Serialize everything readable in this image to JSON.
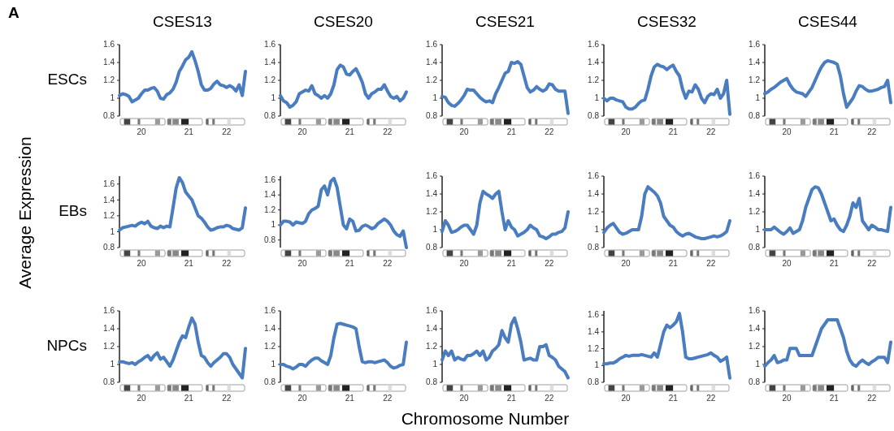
{
  "chart_data": [
    {
      "type": "line",
      "title": "CSES13",
      "ylabel": "ESCs",
      "categories": [
        null,
        null,
        null,
        null,
        null,
        null,
        null,
        "20",
        null,
        null,
        null,
        null,
        null,
        null,
        null,
        null,
        null,
        null,
        null,
        null,
        null,
        null,
        "21",
        null,
        null,
        null,
        null,
        null,
        null,
        null,
        null,
        null,
        null,
        null,
        "22",
        null,
        null,
        null,
        null,
        null,
        null
      ],
      "ylim": [
        0.8,
        1.6
      ],
      "yticks": [
        0.8,
        1,
        1.2,
        1.4,
        1.6
      ],
      "series": [
        {
          "color": "#4a7dbf",
          "values": [
            1.03,
            1.05,
            1.04,
            1.02,
            0.96,
            0.98,
            1.0,
            1.05,
            1.09,
            1.09,
            1.11,
            1.12,
            1.08,
            1.0,
            0.99,
            1.04,
            1.06,
            1.1,
            1.18,
            1.3,
            1.36,
            1.43,
            1.46,
            1.52,
            1.42,
            1.3,
            1.15,
            1.09,
            1.09,
            1.11,
            1.16,
            1.19,
            1.15,
            1.14,
            1.12,
            1.14,
            1.12,
            1.08,
            1.15,
            1.03,
            1.3
          ]
        }
      ]
    },
    {
      "type": "line",
      "title": "CSES20",
      "categories": [
        null,
        null,
        null,
        null,
        null,
        null,
        null,
        "20",
        null,
        null,
        null,
        null,
        null,
        null,
        null,
        null,
        null,
        null,
        null,
        null,
        null,
        null,
        "21",
        null,
        null,
        null,
        null,
        null,
        null,
        null,
        null,
        null,
        null,
        null,
        "22",
        null,
        null,
        null,
        null,
        null,
        null
      ],
      "ylim": [
        0.8,
        1.6
      ],
      "yticks": [
        0.8,
        1,
        1.2,
        1.4,
        1.6
      ],
      "series": [
        {
          "color": "#4a7dbf",
          "values": [
            1.03,
            0.97,
            0.95,
            0.9,
            0.92,
            0.96,
            1.05,
            1.07,
            1.09,
            1.08,
            1.14,
            1.05,
            1.03,
            1.0,
            1.03,
            1.0,
            1.05,
            1.15,
            1.32,
            1.37,
            1.35,
            1.27,
            1.26,
            1.3,
            1.33,
            1.26,
            1.18,
            1.05,
            1.0,
            1.05,
            1.07,
            1.1,
            1.1,
            1.15,
            1.08,
            1.02,
            1.0,
            1.02,
            0.97,
            1.0,
            1.07
          ]
        }
      ]
    },
    {
      "type": "line",
      "title": "CSES21",
      "categories": [
        null,
        null,
        null,
        null,
        null,
        null,
        null,
        "20",
        null,
        null,
        null,
        null,
        null,
        null,
        null,
        null,
        null,
        null,
        null,
        null,
        null,
        null,
        "21",
        null,
        null,
        null,
        null,
        null,
        null,
        null,
        null,
        null,
        null,
        null,
        "22",
        null,
        null,
        null,
        null,
        null,
        null
      ],
      "ylim": [
        0.8,
        1.6
      ],
      "yticks": [
        0.8,
        1,
        1.2,
        1.4,
        1.6
      ],
      "series": [
        {
          "color": "#4a7dbf",
          "values": [
            1.02,
            1.01,
            0.95,
            0.92,
            0.91,
            0.94,
            0.98,
            1.03,
            1.1,
            1.09,
            1.09,
            1.05,
            1.01,
            0.98,
            0.96,
            0.97,
            0.95,
            1.05,
            1.12,
            1.2,
            1.28,
            1.3,
            1.4,
            1.39,
            1.41,
            1.38,
            1.25,
            1.12,
            1.07,
            1.09,
            1.13,
            1.1,
            1.08,
            1.1,
            1.16,
            1.15,
            1.1,
            1.08,
            1.08,
            1.08,
            0.83
          ]
        }
      ]
    },
    {
      "type": "line",
      "title": "CSES32",
      "categories": [
        null,
        null,
        null,
        null,
        null,
        null,
        null,
        "20",
        null,
        null,
        null,
        null,
        null,
        null,
        null,
        null,
        null,
        null,
        null,
        null,
        null,
        null,
        "21",
        null,
        null,
        null,
        null,
        null,
        null,
        null,
        null,
        null,
        null,
        null,
        "22",
        null,
        null,
        null,
        null,
        null,
        null
      ],
      "ylim": [
        0.8,
        1.6
      ],
      "yticks": [
        0.8,
        1,
        1.2,
        1.4,
        1.6
      ],
      "series": [
        {
          "color": "#4a7dbf",
          "values": [
            1.0,
            0.97,
            1.0,
            1.0,
            0.98,
            0.97,
            0.96,
            0.9,
            0.88,
            0.88,
            0.9,
            0.94,
            0.97,
            0.98,
            1.1,
            1.25,
            1.35,
            1.38,
            1.36,
            1.35,
            1.32,
            1.35,
            1.37,
            1.3,
            1.25,
            1.1,
            1.0,
            1.08,
            1.07,
            1.15,
            1.1,
            1.0,
            0.95,
            1.02,
            1.05,
            1.04,
            1.1,
            1.0,
            1.05,
            1.2,
            0.82
          ]
        }
      ]
    },
    {
      "type": "line",
      "title": "CSES44",
      "categories": [
        null,
        null,
        null,
        null,
        null,
        null,
        null,
        "20",
        null,
        null,
        null,
        null,
        null,
        null,
        null,
        null,
        null,
        null,
        null,
        null,
        null,
        null,
        "21",
        null,
        null,
        null,
        null,
        null,
        null,
        null,
        null,
        null,
        null,
        null,
        "22",
        null,
        null,
        null,
        null,
        null,
        null
      ],
      "ylim": [
        0.8,
        1.6
      ],
      "yticks": [
        0.8,
        1,
        1.2,
        1.4,
        1.6
      ],
      "series": [
        {
          "color": "#4a7dbf",
          "values": [
            1.05,
            1.07,
            1.1,
            1.12,
            1.15,
            1.18,
            1.2,
            1.22,
            1.15,
            1.1,
            1.07,
            1.06,
            1.05,
            1.02,
            1.07,
            1.12,
            1.2,
            1.28,
            1.35,
            1.4,
            1.42,
            1.41,
            1.4,
            1.38,
            1.25,
            1.05,
            0.9,
            0.95,
            1.0,
            1.08,
            1.14,
            1.13,
            1.1,
            1.08,
            1.08,
            1.09,
            1.1,
            1.12,
            1.13,
            1.2,
            0.95
          ]
        }
      ]
    },
    {
      "type": "line",
      "ylabel": "EBs",
      "categories": [
        null,
        null,
        null,
        null,
        null,
        null,
        null,
        "20",
        null,
        null,
        null,
        null,
        null,
        null,
        null,
        null,
        null,
        null,
        null,
        null,
        null,
        null,
        "21",
        null,
        null,
        null,
        null,
        null,
        null,
        null,
        null,
        null,
        null,
        null,
        "22",
        null,
        null,
        null,
        null,
        null,
        null
      ],
      "ylim": [
        0.8,
        1.7
      ],
      "yticks": [
        0.8,
        1,
        1.2,
        1.4,
        1.6
      ],
      "series": [
        {
          "color": "#4a7dbf",
          "values": [
            1.02,
            1.05,
            1.06,
            1.07,
            1.08,
            1.07,
            1.1,
            1.12,
            1.1,
            1.13,
            1.07,
            1.05,
            1.04,
            1.07,
            1.05,
            1.07,
            1.06,
            1.3,
            1.55,
            1.68,
            1.62,
            1.5,
            1.45,
            1.4,
            1.3,
            1.2,
            1.17,
            1.12,
            1.06,
            1.02,
            1.03,
            1.05,
            1.06,
            1.06,
            1.08,
            1.07,
            1.04,
            1.03,
            1.02,
            1.05,
            1.3
          ]
        }
      ]
    },
    {
      "type": "line",
      "categories": [
        null,
        null,
        null,
        null,
        null,
        null,
        null,
        "20",
        null,
        null,
        null,
        null,
        null,
        null,
        null,
        null,
        null,
        null,
        null,
        null,
        null,
        null,
        "21",
        null,
        null,
        null,
        null,
        null,
        null,
        null,
        null,
        null,
        null,
        null,
        "22",
        null,
        null,
        null,
        null,
        null,
        null
      ],
      "ylim": [
        0.7,
        1.65
      ],
      "yticks": [
        0.8,
        1,
        1.2,
        1.4,
        1.6
      ],
      "series": [
        {
          "color": "#4a7dbf",
          "values": [
            1.0,
            1.05,
            1.05,
            1.04,
            1.0,
            1.04,
            1.03,
            1.02,
            1.05,
            1.15,
            1.2,
            1.22,
            1.25,
            1.47,
            1.52,
            1.4,
            1.58,
            1.62,
            1.5,
            1.25,
            1.0,
            0.95,
            1.08,
            1.05,
            0.92,
            0.93,
            0.98,
            1.0,
            0.98,
            0.95,
            0.97,
            1.02,
            1.05,
            1.08,
            1.05,
            1.0,
            0.92,
            0.87,
            0.85,
            0.92,
            0.7
          ]
        }
      ]
    },
    {
      "type": "line",
      "categories": [
        null,
        null,
        null,
        null,
        null,
        null,
        null,
        "20",
        null,
        null,
        null,
        null,
        null,
        null,
        null,
        null,
        null,
        null,
        null,
        null,
        null,
        null,
        "21",
        null,
        null,
        null,
        null,
        null,
        null,
        null,
        null,
        null,
        null,
        null,
        "22",
        null,
        null,
        null,
        null,
        null,
        null
      ],
      "ylim": [
        0.8,
        1.6
      ],
      "yticks": [
        0.8,
        1,
        1.2,
        1.4,
        1.6
      ],
      "series": [
        {
          "color": "#4a7dbf",
          "values": [
            0.98,
            1.1,
            1.05,
            0.97,
            0.98,
            1.0,
            1.03,
            1.05,
            1.05,
            1.0,
            0.95,
            1.05,
            1.3,
            1.43,
            1.4,
            1.38,
            1.35,
            1.4,
            1.43,
            1.2,
            1.0,
            1.1,
            1.03,
            1.0,
            0.93,
            0.95,
            0.97,
            1.0,
            1.05,
            1.02,
            1.0,
            0.93,
            0.92,
            0.9,
            0.92,
            0.95,
            0.95,
            0.97,
            0.98,
            1.02,
            1.2
          ]
        }
      ]
    },
    {
      "type": "line",
      "categories": [
        null,
        null,
        null,
        null,
        null,
        null,
        null,
        "20",
        null,
        null,
        null,
        null,
        null,
        null,
        null,
        null,
        null,
        null,
        null,
        null,
        null,
        null,
        "21",
        null,
        null,
        null,
        null,
        null,
        null,
        null,
        null,
        null,
        null,
        null,
        "22",
        null,
        null,
        null,
        null,
        null,
        null
      ],
      "ylim": [
        0.8,
        1.6
      ],
      "yticks": [
        0.8,
        1,
        1.2,
        1.4,
        1.6
      ],
      "series": [
        {
          "color": "#4a7dbf",
          "values": [
            0.97,
            1.02,
            1.05,
            1.07,
            1.02,
            0.97,
            0.95,
            0.96,
            0.98,
            1.0,
            1.0,
            1.0,
            1.15,
            1.4,
            1.48,
            1.45,
            1.42,
            1.38,
            1.3,
            1.15,
            1.1,
            1.05,
            1.03,
            0.98,
            0.95,
            0.93,
            0.95,
            0.96,
            0.94,
            0.92,
            0.91,
            0.9,
            0.9,
            0.91,
            0.92,
            0.93,
            0.92,
            0.93,
            0.95,
            0.98,
            1.1
          ]
        }
      ]
    },
    {
      "type": "line",
      "categories": [
        null,
        null,
        null,
        null,
        null,
        null,
        null,
        "20",
        null,
        null,
        null,
        null,
        null,
        null,
        null,
        null,
        null,
        null,
        null,
        null,
        null,
        null,
        "21",
        null,
        null,
        null,
        null,
        null,
        null,
        null,
        null,
        null,
        null,
        null,
        "22",
        null,
        null,
        null,
        null,
        null,
        null
      ],
      "ylim": [
        0.8,
        1.6
      ],
      "yticks": [
        0.8,
        1,
        1.2,
        1.4,
        1.6
      ],
      "series": [
        {
          "color": "#4a7dbf",
          "values": [
            1.0,
            1.0,
            1.0,
            1.03,
            1.0,
            0.97,
            0.95,
            0.98,
            1.02,
            0.96,
            0.98,
            1.0,
            1.1,
            1.25,
            1.35,
            1.45,
            1.48,
            1.47,
            1.4,
            1.3,
            1.2,
            1.1,
            1.12,
            1.05,
            1.0,
            0.98,
            1.05,
            1.15,
            1.3,
            1.25,
            1.35,
            1.1,
            1.05,
            1.0,
            1.05,
            1.03,
            1.0,
            1.0,
            0.99,
            0.98,
            1.25
          ]
        }
      ]
    },
    {
      "type": "line",
      "ylabel": "NPCs",
      "categories": [
        null,
        null,
        null,
        null,
        null,
        null,
        null,
        "20",
        null,
        null,
        null,
        null,
        null,
        null,
        null,
        null,
        null,
        null,
        null,
        null,
        null,
        null,
        "21",
        null,
        null,
        null,
        null,
        null,
        null,
        null,
        null,
        null,
        null,
        null,
        "22",
        null,
        null,
        null,
        null,
        null,
        null
      ],
      "ylim": [
        0.8,
        1.6
      ],
      "yticks": [
        0.8,
        1,
        1.2,
        1.4,
        1.6
      ],
      "series": [
        {
          "color": "#4a7dbf",
          "values": [
            1.03,
            1.03,
            1.02,
            1.01,
            1.02,
            1.0,
            1.03,
            1.05,
            1.08,
            1.1,
            1.05,
            1.1,
            1.13,
            1.06,
            1.08,
            1.03,
            0.98,
            1.05,
            1.15,
            1.25,
            1.32,
            1.3,
            1.42,
            1.52,
            1.45,
            1.25,
            1.1,
            1.08,
            1.02,
            0.98,
            1.02,
            1.05,
            1.08,
            1.12,
            1.12,
            1.08,
            1.0,
            0.95,
            0.9,
            0.85,
            1.18
          ]
        }
      ]
    },
    {
      "type": "line",
      "categories": [
        null,
        null,
        null,
        null,
        null,
        null,
        null,
        "20",
        null,
        null,
        null,
        null,
        null,
        null,
        null,
        null,
        null,
        null,
        null,
        null,
        null,
        null,
        "21",
        null,
        null,
        null,
        null,
        null,
        null,
        null,
        null,
        null,
        null,
        null,
        "22",
        null,
        null,
        null,
        null,
        null,
        null
      ],
      "ylim": [
        0.8,
        1.6
      ],
      "yticks": [
        0.8,
        1,
        1.2,
        1.4,
        1.6
      ],
      "series": [
        {
          "color": "#4a7dbf",
          "values": [
            1.0,
            1.0,
            0.98,
            0.97,
            0.95,
            0.97,
            1.0,
            1.0,
            0.98,
            1.02,
            1.05,
            1.07,
            1.07,
            1.04,
            1.02,
            1.0,
            1.1,
            1.3,
            1.45,
            1.46,
            1.45,
            1.44,
            1.43,
            1.42,
            1.4,
            1.2,
            1.03,
            1.02,
            1.03,
            1.03,
            1.02,
            1.03,
            1.04,
            1.05,
            1.02,
            0.98,
            0.96,
            0.97,
            0.99,
            1.0,
            1.25
          ]
        }
      ]
    },
    {
      "type": "line",
      "categories": [
        null,
        null,
        null,
        null,
        null,
        null,
        null,
        "20",
        null,
        null,
        null,
        null,
        null,
        null,
        null,
        null,
        null,
        null,
        null,
        null,
        null,
        null,
        "21",
        null,
        null,
        null,
        null,
        null,
        null,
        null,
        null,
        null,
        null,
        null,
        "22",
        null,
        null,
        null,
        null,
        null,
        null
      ],
      "ylim": [
        0.8,
        1.6
      ],
      "yticks": [
        0.8,
        1,
        1.2,
        1.4,
        1.6
      ],
      "series": [
        {
          "color": "#4a7dbf",
          "values": [
            1.05,
            1.15,
            1.1,
            1.15,
            1.05,
            1.08,
            1.06,
            1.05,
            1.1,
            1.1,
            1.12,
            1.15,
            1.1,
            1.15,
            1.05,
            1.08,
            1.15,
            1.18,
            1.22,
            1.38,
            1.3,
            1.25,
            1.45,
            1.52,
            1.4,
            1.25,
            1.05,
            1.06,
            1.07,
            1.05,
            1.05,
            1.2,
            1.2,
            1.22,
            1.1,
            1.08,
            1.05,
            0.98,
            0.95,
            0.92,
            0.85
          ]
        }
      ]
    },
    {
      "type": "line",
      "categories": [
        null,
        null,
        null,
        null,
        null,
        null,
        null,
        "20",
        null,
        null,
        null,
        null,
        null,
        null,
        null,
        null,
        null,
        null,
        null,
        null,
        null,
        null,
        "21",
        null,
        null,
        null,
        null,
        null,
        null,
        null,
        null,
        null,
        null,
        null,
        "22",
        null,
        null,
        null,
        null,
        null,
        null
      ],
      "ylim": [
        0.8,
        1.65
      ],
      "yticks": [
        0.8,
        1,
        1.2,
        1.4,
        1.6
      ],
      "series": [
        {
          "color": "#4a7dbf",
          "values": [
            1.02,
            1.02,
            1.03,
            1.03,
            1.05,
            1.08,
            1.1,
            1.12,
            1.11,
            1.12,
            1.12,
            1.12,
            1.13,
            1.12,
            1.11,
            1.1,
            1.15,
            1.1,
            1.25,
            1.4,
            1.48,
            1.45,
            1.48,
            1.52,
            1.62,
            1.4,
            1.1,
            1.08,
            1.08,
            1.09,
            1.1,
            1.11,
            1.12,
            1.13,
            1.15,
            1.12,
            1.1,
            1.05,
            1.07,
            1.1,
            0.85
          ]
        }
      ]
    },
    {
      "type": "line",
      "categories": [
        null,
        null,
        null,
        null,
        null,
        null,
        null,
        "20",
        null,
        null,
        null,
        null,
        null,
        null,
        null,
        null,
        null,
        null,
        null,
        null,
        null,
        null,
        "21",
        null,
        null,
        null,
        null,
        null,
        null,
        null,
        null,
        null,
        null,
        null,
        "22",
        null,
        null,
        null,
        null,
        null,
        null
      ],
      "ylim": [
        0.8,
        1.6
      ],
      "yticks": [
        0.8,
        1,
        1.2,
        1.4,
        1.6
      ],
      "series": [
        {
          "color": "#4a7dbf",
          "values": [
            0.98,
            1.02,
            1.05,
            1.1,
            1.02,
            1.03,
            1.05,
            1.05,
            1.18,
            1.18,
            1.18,
            1.1,
            1.1,
            1.1,
            1.1,
            1.1,
            1.2,
            1.3,
            1.4,
            1.45,
            1.5,
            1.5,
            1.5,
            1.5,
            1.4,
            1.3,
            1.15,
            1.05,
            1.0,
            0.98,
            1.02,
            1.05,
            1.02,
            1.0,
            1.03,
            1.05,
            1.08,
            1.08,
            1.08,
            1.02,
            1.25
          ]
        }
      ]
    },
    {
      "type": "other",
      "xlabel": "Chromosome Number",
      "ylabel": "Average Expression",
      "annotations": [
        "A"
      ]
    }
  ]
}
